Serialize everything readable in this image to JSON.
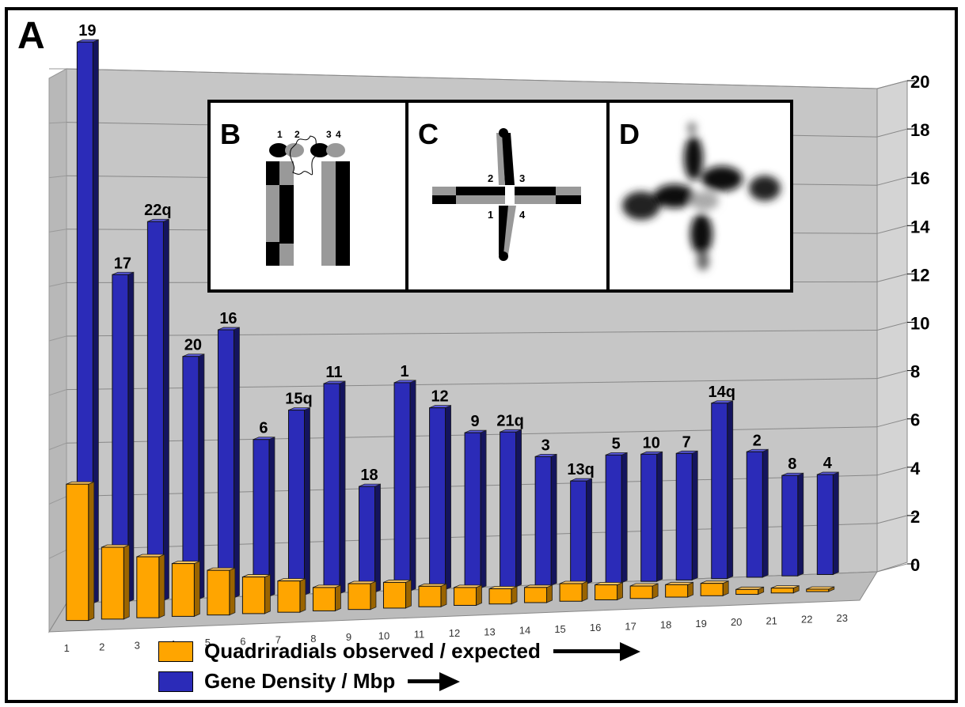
{
  "panel_labels": {
    "a": "A",
    "b": "B",
    "c": "C",
    "d": "D"
  },
  "legend": {
    "quadriradials": {
      "label": "Quadriradials observed / expected",
      "color": "#FFA500"
    },
    "gene_density": {
      "label": "Gene Density / Mbp",
      "color": "#2B2BB8"
    }
  },
  "inset_c_arm_labels": [
    "2",
    "3",
    "1",
    "4"
  ],
  "inset_b_arm_labels": [
    "1",
    "2",
    "3",
    "4"
  ],
  "chart_data": {
    "type": "bar",
    "title": "",
    "xlabel": "",
    "ylabel": "",
    "ylim": [
      0,
      20
    ],
    "yticks": [
      0,
      2,
      4,
      6,
      8,
      10,
      12,
      14,
      16,
      18,
      20
    ],
    "categories": [
      "1",
      "2",
      "3",
      "4",
      "5",
      "6",
      "7",
      "8",
      "9",
      "10",
      "11",
      "12",
      "13",
      "14",
      "15",
      "16",
      "17",
      "18",
      "19",
      "20",
      "21",
      "22",
      "23"
    ],
    "bar_labels": [
      "19",
      "17",
      "22q",
      "20",
      "16",
      "6",
      "15q",
      "11",
      "18",
      "1",
      "12",
      "9",
      "21q",
      "3",
      "13q",
      "5",
      "10",
      "7",
      "14q",
      "2",
      "8",
      "4",
      ""
    ],
    "series": [
      {
        "name": "Gene Density / Mbp",
        "color": "#2B2BB8",
        "values": [
          21.0,
          12.3,
          14.3,
          9.2,
          10.2,
          6.0,
          7.1,
          8.1,
          4.1,
          8.1,
          7.1,
          6.1,
          6.1,
          5.1,
          4.1,
          5.1,
          5.1,
          5.1,
          7.1,
          5.1,
          4.1,
          4.1,
          0
        ]
      },
      {
        "name": "Quadriradials observed / expected",
        "color": "#FFA500",
        "values": [
          5.1,
          2.7,
          2.3,
          2.0,
          1.7,
          1.4,
          1.2,
          0.9,
          1.0,
          1.0,
          0.8,
          0.7,
          0.6,
          0.6,
          0.7,
          0.6,
          0.5,
          0.5,
          0.5,
          0.2,
          0.2,
          0.1,
          0
        ]
      }
    ]
  }
}
